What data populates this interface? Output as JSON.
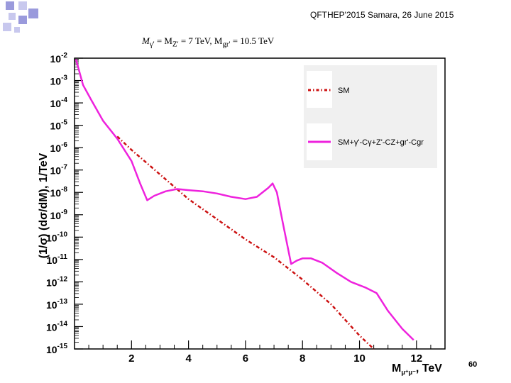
{
  "header": {
    "text": "QFTHEP'2015 Samara,  26 June 2015",
    "page_number": "60"
  },
  "colors": {
    "corner_square_a": "#9a9adc",
    "corner_square_b": "#c8c8ee",
    "sm_line": "#cc1111",
    "signal_line": "#ee22dd",
    "legend_bg": "#f0f0f0"
  },
  "chart_data": {
    "type": "line",
    "title_parts": {
      "p1": "M",
      "p1_sub": "γ'",
      "p2": " = M",
      "p2_sub": "Z'",
      "p3": " = 7 TeV, M",
      "p3_sub": "gr'",
      "p4": " = 10.5 TeV"
    },
    "xlabel": "M",
    "xlabel_sub": "μ⁺μ⁻",
    "xlabel_unit": ", TeV",
    "ylabel": "(1/σ) (dσ/dM), 1/TeV",
    "xlim": [
      0,
      13
    ],
    "ylim_log10": [
      -15,
      -2
    ],
    "yscale": "log",
    "x_ticks": [
      "2",
      "4",
      "6",
      "8",
      "10",
      "12"
    ],
    "y_ticks": [
      {
        "base": "10",
        "exp": "-2"
      },
      {
        "base": "10",
        "exp": "-3"
      },
      {
        "base": "10",
        "exp": "-4"
      },
      {
        "base": "10",
        "exp": "-5"
      },
      {
        "base": "10",
        "exp": "-6"
      },
      {
        "base": "10",
        "exp": "-7"
      },
      {
        "base": "10",
        "exp": "-8"
      },
      {
        "base": "10",
        "exp": "-9"
      },
      {
        "base": "10",
        "exp": "-10"
      },
      {
        "base": "10",
        "exp": "-11"
      },
      {
        "base": "10",
        "exp": "-12"
      },
      {
        "base": "10",
        "exp": "-13"
      },
      {
        "base": "10",
        "exp": "-14"
      },
      {
        "base": "10",
        "exp": "-15"
      }
    ],
    "legend_position": "top-right",
    "series": [
      {
        "name": "SM",
        "style": "dash-dot",
        "x": [
          1.5,
          2,
          3,
          4,
          5,
          6,
          7,
          8,
          9,
          10,
          10.5
        ],
        "log10_y": [
          -5.5,
          -6.1,
          -7.2,
          -8.3,
          -9.2,
          -10.1,
          -10.9,
          -11.9,
          -13.0,
          -14.4,
          -15.0
        ]
      },
      {
        "name": "SM+γ'-Cγ+Z'-CZ+gr'-Cgr",
        "style": "solid",
        "x": [
          0.05,
          0.3,
          0.6,
          1.0,
          1.5,
          2.0,
          2.3,
          2.55,
          2.8,
          3.2,
          3.6,
          4.0,
          4.5,
          5.0,
          5.5,
          6.0,
          6.4,
          6.8,
          6.95,
          7.1,
          7.3,
          7.6,
          7.8,
          8.0,
          8.3,
          8.7,
          9.2,
          9.7,
          10.2,
          10.6,
          11.0,
          11.5,
          11.9
        ],
        "log10_y": [
          -2.05,
          -3.2,
          -3.9,
          -4.8,
          -5.6,
          -6.6,
          -7.6,
          -8.35,
          -8.15,
          -7.95,
          -7.85,
          -7.9,
          -7.95,
          -8.05,
          -8.2,
          -8.3,
          -8.2,
          -7.8,
          -7.6,
          -8.0,
          -9.3,
          -11.2,
          -11.05,
          -10.95,
          -10.95,
          -11.15,
          -11.6,
          -12.0,
          -12.25,
          -12.5,
          -13.3,
          -14.1,
          -14.6
        ]
      }
    ]
  }
}
